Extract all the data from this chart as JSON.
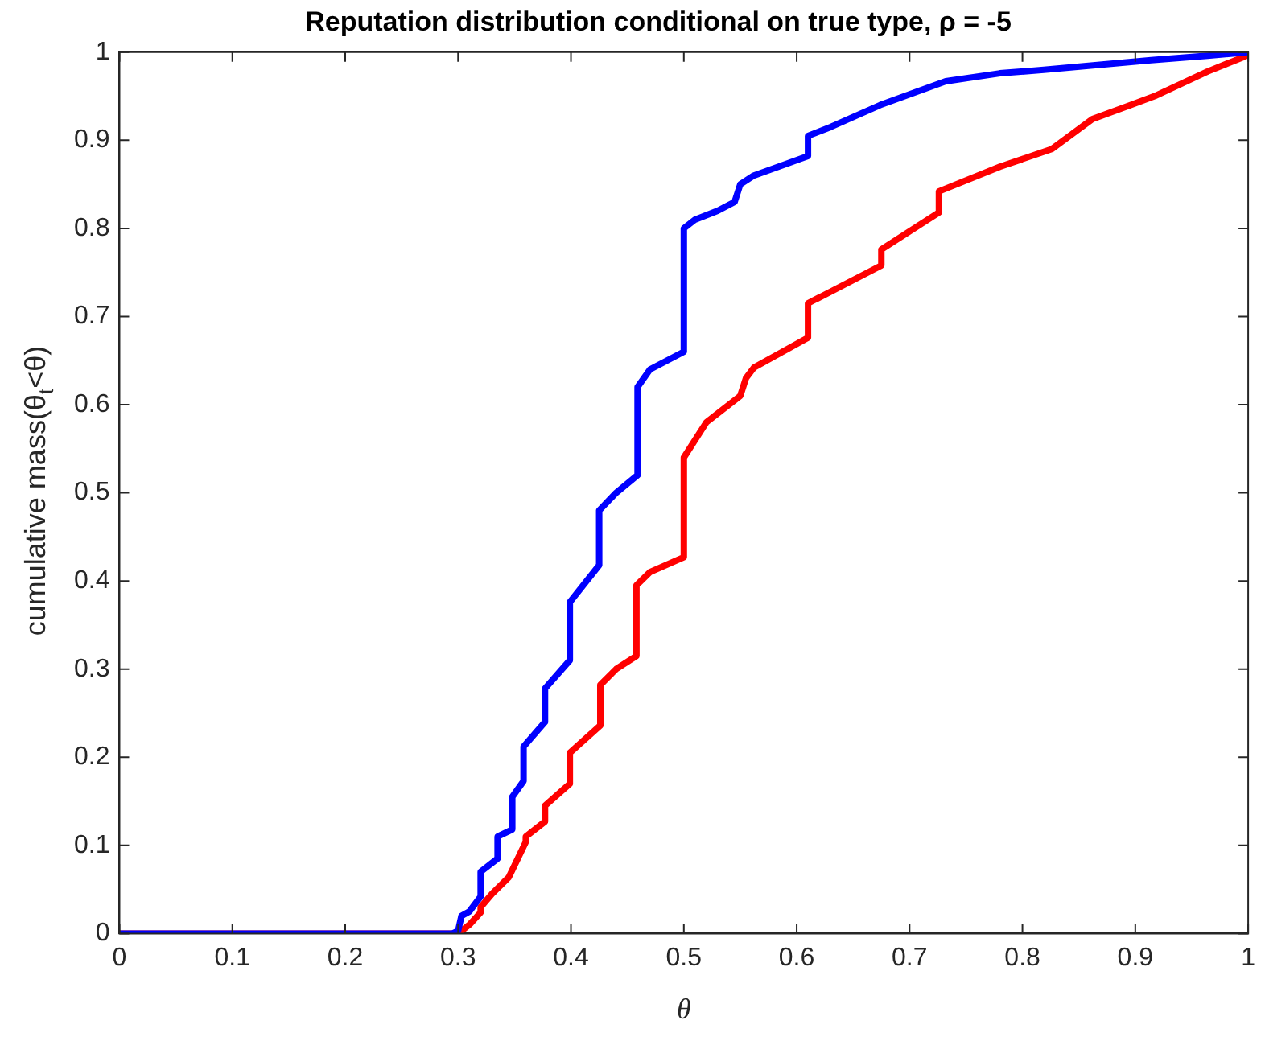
{
  "chart_data": {
    "type": "line",
    "title": "Reputation distribution conditional on true type, ρ = -5",
    "xlabel": "θ",
    "ylabel": "cumulative mass(θ$_{t}$<θ)",
    "xlim": [
      0,
      1
    ],
    "ylim": [
      0,
      1
    ],
    "xticks": [
      0,
      0.1,
      0.2,
      0.3,
      0.4,
      0.5,
      0.6,
      0.7,
      0.8,
      0.9,
      1
    ],
    "yticks": [
      0,
      0.1,
      0.2,
      0.3,
      0.4,
      0.5,
      0.6,
      0.7,
      0.8,
      0.9,
      1
    ],
    "grid": false,
    "legend": false,
    "marker": "none",
    "line_style": "solid",
    "series": [
      {
        "color": "#0000ff",
        "x": [
          0,
          0.295,
          0.3,
          0.303,
          0.31,
          0.32,
          0.32,
          0.335,
          0.335,
          0.348,
          0.348,
          0.358,
          0.358,
          0.377,
          0.377,
          0.399,
          0.399,
          0.425,
          0.425,
          0.44,
          0.459,
          0.459,
          0.47,
          0.5,
          0.5,
          0.51,
          0.53,
          0.545,
          0.55,
          0.562,
          0.61,
          0.61,
          0.63,
          0.674,
          0.732,
          0.78,
          0.819,
          0.914,
          0.964,
          1
        ],
        "values": [
          0,
          0,
          0.003,
          0.02,
          0.025,
          0.042,
          0.07,
          0.085,
          0.11,
          0.118,
          0.155,
          0.173,
          0.212,
          0.24,
          0.278,
          0.31,
          0.376,
          0.418,
          0.48,
          0.5,
          0.52,
          0.62,
          0.64,
          0.66,
          0.8,
          0.81,
          0.82,
          0.83,
          0.85,
          0.86,
          0.882,
          0.905,
          0.915,
          0.94,
          0.967,
          0.976,
          0.98,
          0.991,
          0.996,
          1
        ]
      },
      {
        "color": "#ff0000",
        "x": [
          0,
          0.3,
          0.31,
          0.32,
          0.32,
          0.33,
          0.345,
          0.36,
          0.36,
          0.377,
          0.377,
          0.399,
          0.399,
          0.426,
          0.426,
          0.44,
          0.458,
          0.458,
          0.47,
          0.5,
          0.5,
          0.52,
          0.55,
          0.555,
          0.562,
          0.61,
          0.61,
          0.675,
          0.675,
          0.726,
          0.726,
          0.78,
          0.826,
          0.862,
          0.896,
          0.917,
          0.964,
          0.997,
          1
        ],
        "values": [
          0,
          0,
          0.01,
          0.024,
          0.03,
          0.045,
          0.064,
          0.104,
          0.11,
          0.127,
          0.145,
          0.17,
          0.205,
          0.236,
          0.282,
          0.3,
          0.315,
          0.395,
          0.41,
          0.427,
          0.54,
          0.58,
          0.61,
          0.63,
          0.642,
          0.676,
          0.715,
          0.758,
          0.776,
          0.818,
          0.842,
          0.87,
          0.89,
          0.924,
          0.94,
          0.95,
          0.978,
          0.995,
          1
        ]
      }
    ]
  }
}
